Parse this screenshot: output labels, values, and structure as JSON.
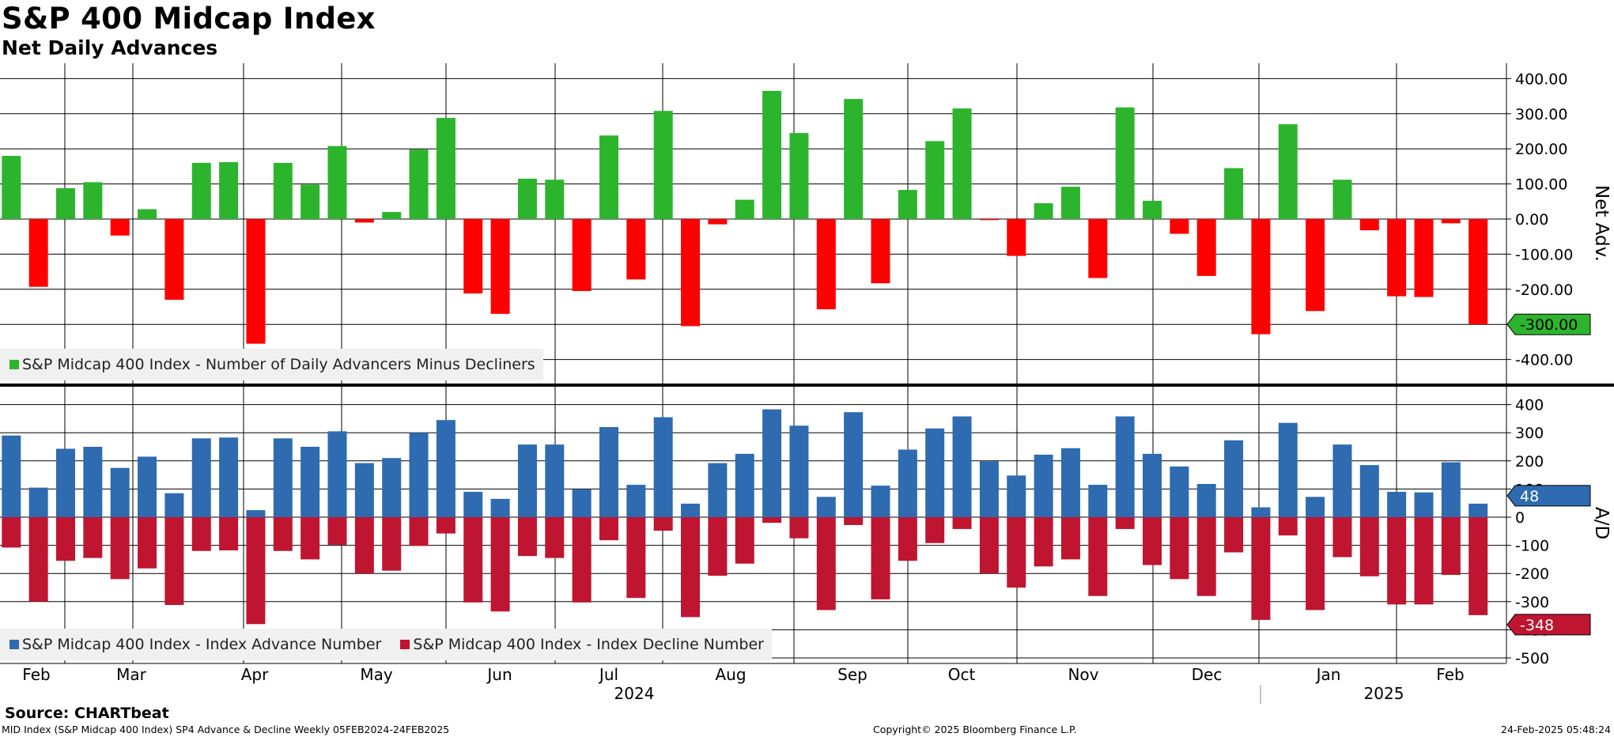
{
  "title": "S&P 400 Midcap Index",
  "subtitle": "Net Daily Advances",
  "source": "Source: CHARTbeat",
  "footer": {
    "left": "MID Index (S&P Midcap 400 Index) SP4 Advance & Decline  Weekly 05FEB2024-24FEB2025",
    "center": "Copyright© 2025 Bloomberg Finance L.P.",
    "right": "24-Feb-2025 05:48:24"
  },
  "colors": {
    "positive": "#2cb52c",
    "negative": "#ff0000",
    "advance": "#2e6bb0",
    "decline": "#bf1530",
    "grid": "#000000"
  },
  "chart_data": [
    {
      "type": "bar",
      "ylabel": "Net Adv.",
      "ylim": [
        -400,
        400
      ],
      "yticks": [
        "400.00",
        "300.00",
        "200.00",
        "100.00",
        "0.00",
        "-100.00",
        "-200.00",
        "-300.00",
        "-400.00"
      ],
      "last_value_label": "-300.00",
      "legend_position": "bottom-left",
      "series": [
        {
          "name": "S&P Midcap 400 Index - Number of Daily Advancers Minus Decliners",
          "values": [
            180,
            -193,
            88,
            105,
            -47,
            28,
            -230,
            160,
            162,
            -355,
            160,
            98,
            208,
            -10,
            20,
            198,
            288,
            -212,
            -270,
            115,
            112,
            -205,
            238,
            -172,
            308,
            -305,
            -15,
            55,
            365,
            245,
            -257,
            342,
            -183,
            83,
            222,
            315,
            -3,
            -105,
            45,
            92,
            -168,
            318,
            52,
            -42,
            -162,
            145,
            -328,
            270,
            -262,
            112,
            -32,
            -220,
            -222,
            -12,
            -300
          ]
        }
      ]
    },
    {
      "type": "bar",
      "ylabel": "A/D",
      "ylim": [
        -500,
        400
      ],
      "yticks": [
        "400",
        "300",
        "200",
        "100",
        "0",
        "-100",
        "-200",
        "-300",
        "-400",
        "-500"
      ],
      "last_value_labels": [
        "48",
        "-348"
      ],
      "legend_position": "bottom-left",
      "series": [
        {
          "name": "S&P Midcap 400 Index - Index Advance Number",
          "values": [
            290,
            105,
            243,
            250,
            175,
            215,
            85,
            280,
            283,
            25,
            280,
            250,
            305,
            192,
            210,
            300,
            345,
            90,
            65,
            258,
            258,
            98,
            320,
            115,
            355,
            48,
            192,
            225,
            383,
            325,
            72,
            373,
            112,
            240,
            315,
            358,
            198,
            148,
            222,
            245,
            115,
            358,
            225,
            180,
            118,
            273,
            35,
            335,
            72,
            258,
            185,
            90,
            88,
            195,
            48
          ]
        },
        {
          "name": "S&P Midcap 400 Index - Index Decline Number",
          "values": [
            -108,
            -300,
            -155,
            -145,
            -220,
            -182,
            -312,
            -120,
            -118,
            -380,
            -120,
            -150,
            -98,
            -200,
            -190,
            -102,
            -58,
            -303,
            -335,
            -138,
            -145,
            -303,
            -82,
            -287,
            -48,
            -355,
            -208,
            -165,
            -20,
            -75,
            -330,
            -28,
            -292,
            -155,
            -92,
            -42,
            -200,
            -250,
            -175,
            -150,
            -280,
            -42,
            -170,
            -220,
            -280,
            -125,
            -365,
            -65,
            -330,
            -142,
            -210,
            -310,
            -310,
            -205,
            -348
          ]
        }
      ]
    }
  ],
  "x_axis": {
    "months": [
      "Feb",
      "Mar",
      "Apr",
      "May",
      "Jun",
      "Jul",
      "Aug",
      "Sep",
      "Oct",
      "Nov",
      "Dec",
      "Jan",
      "Feb"
    ],
    "years": [
      "2024",
      "2025"
    ]
  }
}
